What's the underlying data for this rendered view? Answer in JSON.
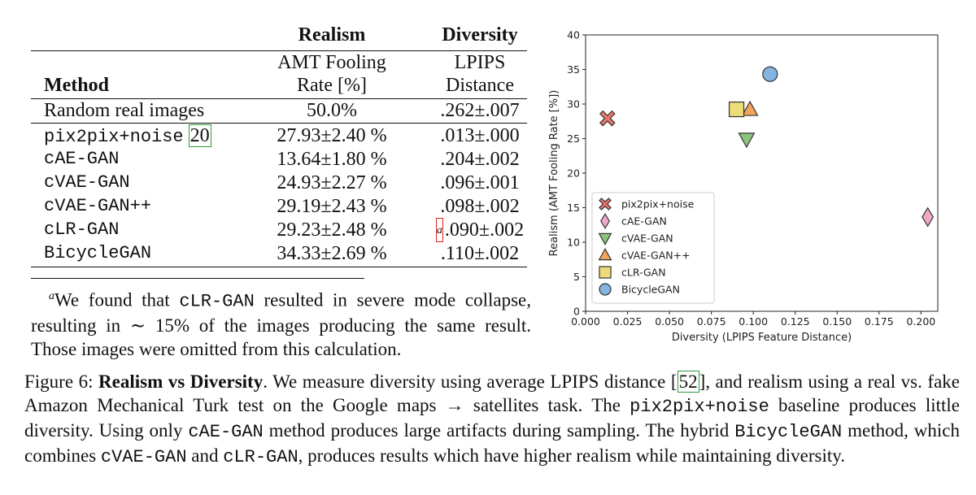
{
  "table": {
    "header_group": {
      "realism": "Realism",
      "diversity": "Diversity"
    },
    "header_sub1": {
      "realism": "AMT Fooling",
      "diversity": "LPIPS"
    },
    "header_sub2": {
      "method": "Method",
      "realism": "Rate [%]",
      "diversity": "Distance"
    },
    "baseline": {
      "method": "Random real images",
      "realism": "50.0%",
      "diversity": ".262±.007"
    },
    "rows": [
      {
        "method": "pix2pix+noise",
        "cite": "20",
        "realism": "27.93±2.40 %",
        "diversity": ".013±.000"
      },
      {
        "method": "cAE-GAN",
        "realism": "13.64±1.80 %",
        "diversity": ".204±.002"
      },
      {
        "method": "cVAE-GAN",
        "realism": "24.93±2.27 %",
        "diversity": ".096±.001"
      },
      {
        "method": "cVAE-GAN++",
        "realism": "29.19±2.43 %",
        "diversity": ".098±.002"
      },
      {
        "method": "cLR-GAN",
        "realism": "29.23±2.48 %",
        "diversity_mark": "a",
        "diversity": ".090±.002"
      },
      {
        "method": "BicycleGAN",
        "realism": "34.33±2.69 %",
        "diversity": ".110±.002"
      }
    ]
  },
  "footnote": {
    "mark": "a",
    "pre": "We found that ",
    "code": "cLR-GAN",
    "post": " resulted in severe mode collapse, resulting in ∼ 15% of the images producing the same result. Those images were omitted from this calculation."
  },
  "caption": {
    "label": "Figure 6: ",
    "title": "Realism vs Diversity",
    "t1": ". We measure diversity using average LPIPS distance [",
    "cite": "52",
    "t2": "], and realism using a real vs. fake Amazon Mechanical Turk test on the Google maps → satellites task. The ",
    "c1": "pix2pix+noise",
    "t3": " baseline produces little diversity. Using only ",
    "c2": "cAE-GAN",
    "t4": " method produces large artifacts during sampling. The hybrid ",
    "c3": "BicycleGAN",
    "t5": " method, which combines ",
    "c4": "cVAE-GAN",
    "t6": " and ",
    "c5": "cLR-GAN",
    "t7": ", produces results which have higher realism while maintaining diversity."
  },
  "chart_data": {
    "type": "scatter",
    "xlabel": "Diversity (LPIPS Feature Distance)",
    "ylabel": "Realism (AMT Fooling Rate [%])",
    "xlim": [
      0.0,
      0.21
    ],
    "ylim": [
      0,
      40
    ],
    "xticks": [
      "0.000",
      "0.025",
      "0.050",
      "0.075",
      "0.100",
      "0.125",
      "0.150",
      "0.175",
      "0.200"
    ],
    "yticks": [
      "0",
      "5",
      "10",
      "15",
      "20",
      "25",
      "30",
      "35",
      "40"
    ],
    "legend_position": "lower-left",
    "grid": false,
    "series": [
      {
        "name": "pix2pix+noise",
        "x": 0.013,
        "y": 27.93,
        "marker": "x",
        "color": "#e8776b"
      },
      {
        "name": "cAE-GAN",
        "x": 0.204,
        "y": 13.64,
        "marker": "diamond",
        "color": "#f0a8c8"
      },
      {
        "name": "cVAE-GAN",
        "x": 0.096,
        "y": 24.93,
        "marker": "triangle-down",
        "color": "#8cc27a"
      },
      {
        "name": "cVAE-GAN++",
        "x": 0.098,
        "y": 29.19,
        "marker": "triangle-up",
        "color": "#f2a55a"
      },
      {
        "name": "cLR-GAN",
        "x": 0.09,
        "y": 29.23,
        "marker": "square",
        "color": "#eedc78"
      },
      {
        "name": "BicycleGAN",
        "x": 0.11,
        "y": 34.33,
        "marker": "circle",
        "color": "#86b4e0"
      }
    ]
  }
}
